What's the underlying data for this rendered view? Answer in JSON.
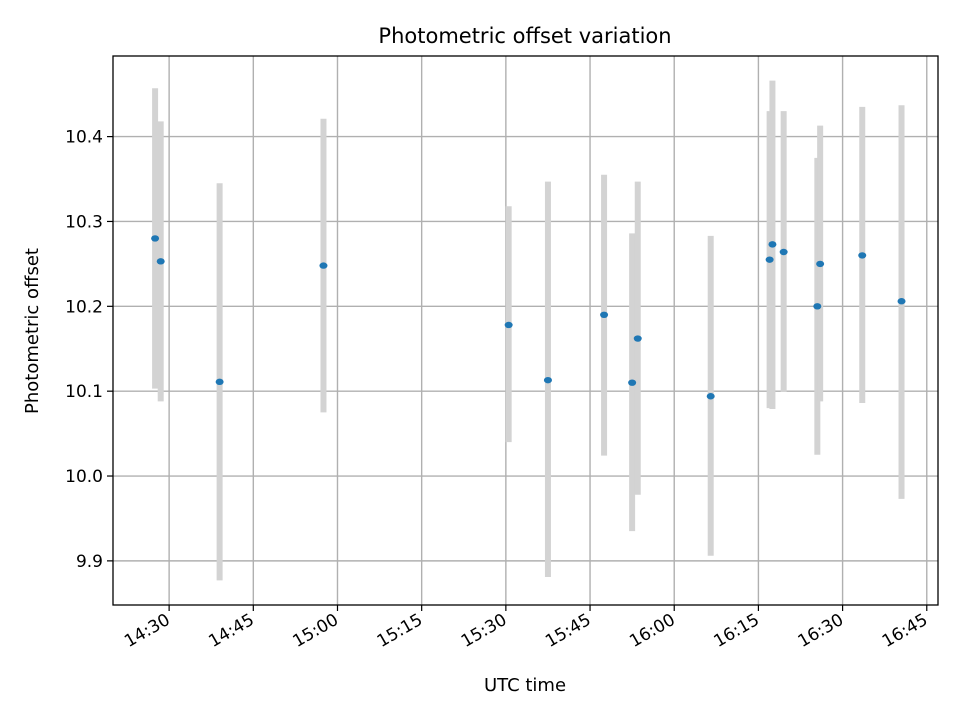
{
  "chart_data": {
    "type": "scatter",
    "title": "Photometric offset variation",
    "xlabel": "UTC time",
    "ylabel": "Photometric offset",
    "x_axis_type": "time",
    "xlim": [
      "14:20",
      "16:47"
    ],
    "ylim": [
      9.848,
      10.495
    ],
    "grid": true,
    "x_ticks": [
      "14:30",
      "14:45",
      "15:00",
      "15:15",
      "15:30",
      "15:45",
      "16:00",
      "16:15",
      "16:30",
      "16:45"
    ],
    "y_ticks": [
      "9.9",
      "10.0",
      "10.1",
      "10.2",
      "10.3",
      "10.4"
    ],
    "colors": {
      "marker": "#1f77b4",
      "error_bar": "#d3d3d3",
      "grid": "#b0b0b0"
    },
    "points": [
      {
        "x": "14:27:30",
        "y": 10.28,
        "lo": 10.103,
        "hi": 10.457
      },
      {
        "x": "14:28:30",
        "y": 10.253,
        "lo": 10.088,
        "hi": 10.418
      },
      {
        "x": "14:39:00",
        "y": 10.111,
        "lo": 9.877,
        "hi": 10.345
      },
      {
        "x": "14:57:30",
        "y": 10.248,
        "lo": 10.075,
        "hi": 10.421
      },
      {
        "x": "15:30:30",
        "y": 10.178,
        "lo": 10.04,
        "hi": 10.318
      },
      {
        "x": "15:37:30",
        "y": 10.113,
        "lo": 9.881,
        "hi": 10.347
      },
      {
        "x": "15:47:30",
        "y": 10.19,
        "lo": 10.024,
        "hi": 10.355
      },
      {
        "x": "15:52:30",
        "y": 10.11,
        "lo": 9.935,
        "hi": 10.286
      },
      {
        "x": "15:53:30",
        "y": 10.162,
        "lo": 9.978,
        "hi": 10.347
      },
      {
        "x": "16:06:30",
        "y": 10.094,
        "lo": 9.906,
        "hi": 10.283
      },
      {
        "x": "16:17:00",
        "y": 10.255,
        "lo": 10.08,
        "hi": 10.43
      },
      {
        "x": "16:17:30",
        "y": 10.273,
        "lo": 10.079,
        "hi": 10.466
      },
      {
        "x": "16:19:30",
        "y": 10.264,
        "lo": 10.099,
        "hi": 10.43
      },
      {
        "x": "16:25:30",
        "y": 10.2,
        "lo": 10.025,
        "hi": 10.375
      },
      {
        "x": "16:26:00",
        "y": 10.25,
        "lo": 10.088,
        "hi": 10.413
      },
      {
        "x": "16:33:30",
        "y": 10.26,
        "lo": 10.086,
        "hi": 10.435
      },
      {
        "x": "16:40:30",
        "y": 10.206,
        "lo": 9.973,
        "hi": 10.437
      }
    ]
  }
}
